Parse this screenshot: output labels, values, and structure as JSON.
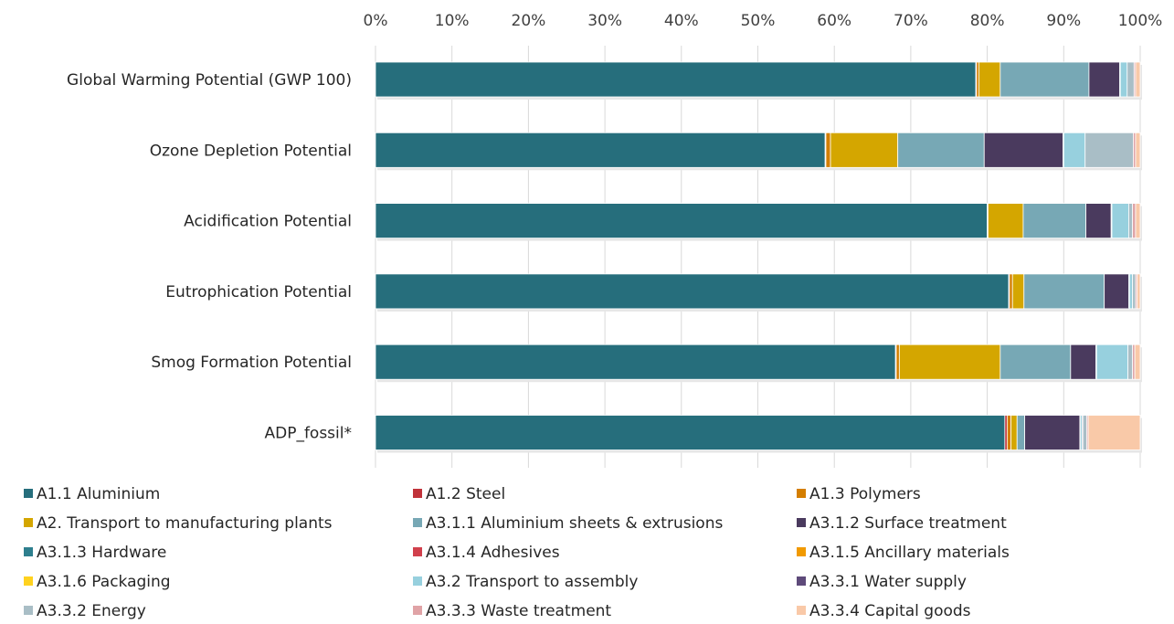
{
  "chart_data": {
    "type": "bar",
    "orientation": "horizontal",
    "stacked": "percent",
    "x_ticks": [
      "0%",
      "10%",
      "20%",
      "30%",
      "40%",
      "50%",
      "60%",
      "70%",
      "80%",
      "90%",
      "100%"
    ],
    "xlim": [
      0,
      100
    ],
    "grid": true,
    "legend_position": "bottom",
    "categories": [
      "Global Warming Potential (GWP 100)",
      "Ozone Depletion Potential",
      "Acidification Potential",
      "Eutrophication Potential",
      "Smog Formation Potential",
      "ADP_fossil*"
    ],
    "series": [
      {
        "name": "A1.1 Aluminium",
        "color": "#266E7C",
        "values": [
          78.5,
          58.8,
          80.0,
          82.8,
          68.0,
          82.3
        ]
      },
      {
        "name": "A1.2 Steel",
        "color": "#C0323A",
        "values": [
          0.1,
          0.1,
          0.0,
          0.1,
          0.1,
          0.3
        ]
      },
      {
        "name": "A1.3 Polymers",
        "color": "#D47E00",
        "values": [
          0.3,
          0.6,
          0.1,
          0.4,
          0.4,
          0.5
        ]
      },
      {
        "name": "A2. Transport to manufacturing plants",
        "color": "#D4A600",
        "values": [
          2.8,
          8.8,
          4.6,
          1.5,
          13.2,
          0.8
        ]
      },
      {
        "name": "A3.1.1 Aluminium sheets & extrusions",
        "color": "#77A8B5",
        "values": [
          11.6,
          11.3,
          8.2,
          10.5,
          9.2,
          1.0
        ]
      },
      {
        "name": "A3.1.2 Surface treatment",
        "color": "#4A3A5E",
        "values": [
          4.0,
          10.3,
          3.3,
          3.2,
          3.3,
          7.2
        ]
      },
      {
        "name": "A3.1.3 Hardware",
        "color": "#2E7F8E",
        "values": [
          0.1,
          0.1,
          0.1,
          0.1,
          0.1,
          0.1
        ]
      },
      {
        "name": "A3.1.4 Adhesives",
        "color": "#D1404C",
        "values": [
          0.0,
          0.0,
          0.0,
          0.0,
          0.0,
          0.0
        ]
      },
      {
        "name": "A3.1.5 Ancillary materials",
        "color": "#F19A00",
        "values": [
          0.0,
          0.0,
          0.0,
          0.0,
          0.0,
          0.0
        ]
      },
      {
        "name": "A3.1.6 Packaging",
        "color": "#FFD21F",
        "values": [
          0.0,
          0.0,
          0.0,
          0.0,
          0.0,
          0.0
        ]
      },
      {
        "name": "A3.2 Transport to assembly",
        "color": "#97D0DE",
        "values": [
          0.9,
          2.8,
          2.2,
          0.4,
          4.1,
          0.2
        ]
      },
      {
        "name": "A3.3.1 Water supply",
        "color": "#5E4A7A",
        "values": [
          0.0,
          0.0,
          0.0,
          0.0,
          0.0,
          0.1
        ]
      },
      {
        "name": "A3.3.2 Energy",
        "color": "#A9BEC6",
        "values": [
          0.9,
          6.3,
          0.5,
          0.4,
          0.6,
          0.5
        ]
      },
      {
        "name": "A3.3.3 Waste treatment",
        "color": "#E0A3A6",
        "values": [
          0.2,
          0.3,
          0.4,
          0.2,
          0.3,
          0.2
        ]
      },
      {
        "name": "A3.3.4 Capital goods",
        "color": "#F9C9A8",
        "values": [
          0.6,
          0.6,
          0.6,
          0.4,
          0.7,
          6.8
        ]
      }
    ]
  }
}
